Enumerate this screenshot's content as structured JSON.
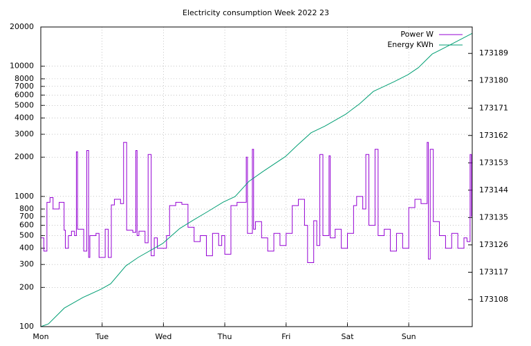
{
  "chart_data": {
    "type": "line",
    "title": "Electricity consumption Week 2022 23",
    "xlim": [
      0,
      7.035
    ],
    "xticks": [
      {
        "value": 0,
        "label": "Mon"
      },
      {
        "value": 1,
        "label": "Tue"
      },
      {
        "value": 2,
        "label": "Wed"
      },
      {
        "value": 3,
        "label": "Thu"
      },
      {
        "value": 4,
        "label": "Fri"
      },
      {
        "value": 5,
        "label": "Sat"
      },
      {
        "value": 6,
        "label": "Sun"
      }
    ],
    "ylim": [
      100,
      20000
    ],
    "yscale": "log",
    "yticks": [
      100,
      200,
      300,
      400,
      500,
      600,
      700,
      800,
      1000,
      2000,
      3000,
      4000,
      5000,
      6000,
      7000,
      8000,
      10000,
      20000
    ],
    "y2lim": [
      173099.1,
      173197.7
    ],
    "y2ticks": [
      173108,
      173117,
      173126,
      173135,
      173144,
      173153,
      173162,
      173171,
      173180,
      173189
    ],
    "grid": true,
    "legend": "top-right",
    "series": [
      {
        "name": "Power W",
        "color": "#9400d3",
        "style": "steps",
        "x": [
          0,
          0.05,
          0.1,
          0.15,
          0.2,
          0.3,
          0.38,
          0.4,
          0.45,
          0.5,
          0.55,
          0.58,
          0.6,
          0.7,
          0.75,
          0.78,
          0.8,
          0.9,
          0.95,
          1.05,
          1.1,
          1.15,
          1.2,
          1.3,
          1.35,
          1.4,
          1.5,
          1.55,
          1.57,
          1.6,
          1.7,
          1.75,
          1.8,
          1.85,
          1.9,
          2.05,
          2.1,
          2.2,
          2.3,
          2.4,
          2.5,
          2.6,
          2.7,
          2.8,
          2.9,
          2.95,
          3.0,
          3.1,
          3.2,
          3.35,
          3.37,
          3.45,
          3.47,
          3.5,
          3.6,
          3.7,
          3.8,
          3.9,
          4.0,
          4.1,
          4.2,
          4.3,
          4.35,
          4.45,
          4.5,
          4.55,
          4.6,
          4.7,
          4.72,
          4.8,
          4.9,
          5.0,
          5.1,
          5.15,
          5.25,
          5.3,
          5.35,
          5.45,
          5.5,
          5.6,
          5.7,
          5.8,
          5.9,
          6.0,
          6.1,
          6.2,
          6.3,
          6.32,
          6.35,
          6.4,
          6.5,
          6.6,
          6.7,
          6.8,
          6.9,
          6.95,
          7.0,
          7.02
        ],
        "values": [
          480,
          380,
          900,
          980,
          800,
          900,
          550,
          400,
          500,
          540,
          500,
          2200,
          560,
          380,
          2250,
          340,
          500,
          520,
          340,
          560,
          340,
          860,
          950,
          880,
          2600,
          550,
          530,
          2250,
          500,
          540,
          440,
          2100,
          350,
          480,
          400,
          500,
          850,
          900,
          870,
          580,
          450,
          500,
          350,
          520,
          420,
          500,
          360,
          850,
          900,
          2000,
          520,
          2300,
          560,
          640,
          480,
          380,
          520,
          420,
          520,
          850,
          950,
          600,
          310,
          650,
          420,
          2100,
          500,
          2050,
          480,
          560,
          400,
          520,
          850,
          1000,
          800,
          2100,
          600,
          2300,
          500,
          560,
          380,
          520,
          400,
          820,
          950,
          880,
          2600,
          330,
          2300,
          640,
          500,
          400,
          520,
          400,
          480,
          450,
          2100,
          700
        ]
      },
      {
        "name": "Energy KWh",
        "color": "#009e73",
        "axis": "y2",
        "x": [
          0,
          0.124,
          0.383,
          0.688,
          0.981,
          1.139,
          1.387,
          1.59,
          1.984,
          2.266,
          2.492,
          2.717,
          2.977,
          3.168,
          3.394,
          3.619,
          3.991,
          4.183,
          4.408,
          4.634,
          4.972,
          5.197,
          5.423,
          5.761,
          5.987,
          6.156,
          6.382,
          6.607,
          7.035
        ],
        "values": [
          173099.1,
          173100.0,
          173105.2,
          173108.7,
          173111.4,
          173113.2,
          173119.1,
          173121.9,
          173126.4,
          173131.4,
          173134.2,
          173136.9,
          173140.1,
          173141.9,
          173146.9,
          173150.1,
          173155.1,
          173158.8,
          173162.9,
          173165.1,
          173169.0,
          173172.4,
          173176.5,
          173179.7,
          173182.0,
          173184.3,
          173188.8,
          173191.1,
          173195.6
        ]
      }
    ]
  }
}
